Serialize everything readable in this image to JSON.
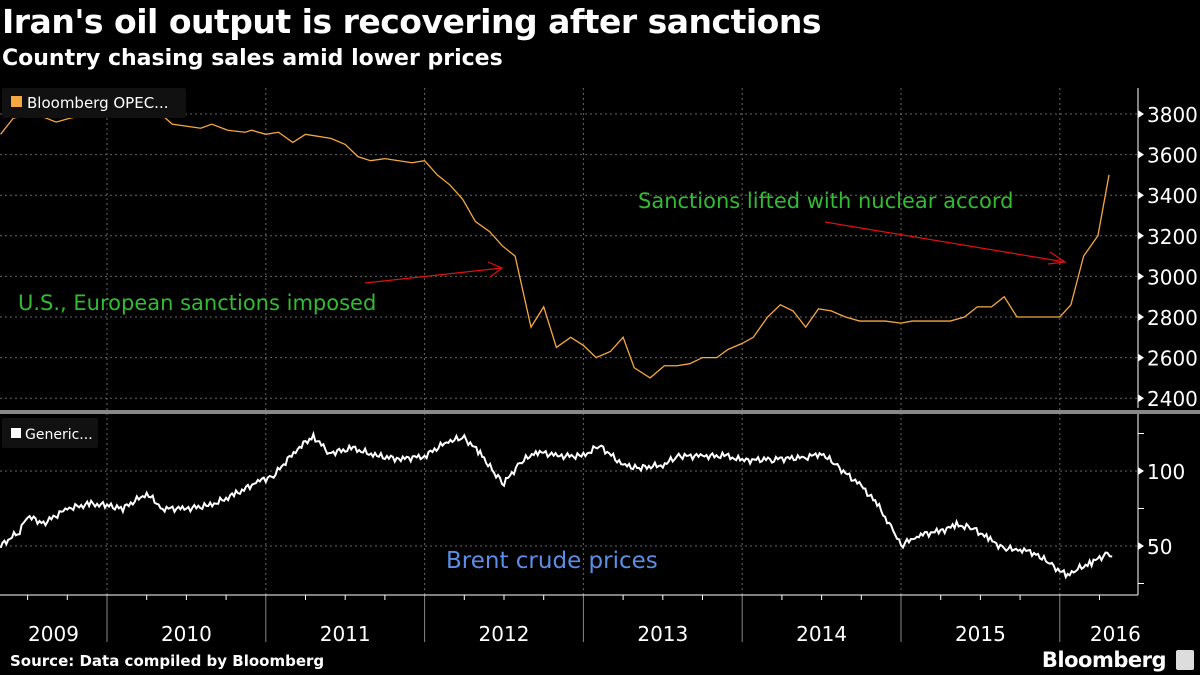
{
  "header": {
    "title": "Iran's oil output is recovering after sanctions",
    "subtitle": "Country chasing sales amid lower prices"
  },
  "footer": {
    "source": "Source: Data compiled by Bloomberg",
    "brand": "Bloomberg"
  },
  "colors": {
    "oil": "#f5a742",
    "brent": "#ffffff",
    "annotation": "#33bb33",
    "arrow": "#e01010",
    "brent_label": "#5b8ee6",
    "grid": "#666666"
  },
  "chart_data": [
    {
      "type": "line",
      "legend": "Bloomberg OPEC...",
      "ylim": [
        2300,
        3900
      ],
      "yticks": [
        2400,
        2600,
        2800,
        3000,
        3200,
        3400,
        3600,
        3800
      ],
      "annotations": [
        "Sanctions lifted with nuclear accord",
        "U.S., European sanctions imposed"
      ],
      "x": [
        2009.33,
        2009.41,
        2009.55,
        2009.68,
        2009.77,
        2009.9,
        2010.08,
        2010.18,
        2010.27,
        2010.34,
        2010.41,
        2010.59,
        2010.66,
        2010.76,
        2010.87,
        2010.91,
        2011.0,
        2011.08,
        2011.17,
        2011.25,
        2011.41,
        2011.5,
        2011.58,
        2011.66,
        2011.75,
        2011.92,
        2012.0,
        2012.08,
        2012.16,
        2012.24,
        2012.32,
        2012.41,
        2012.49,
        2012.57,
        2012.67,
        2012.75,
        2012.83,
        2012.92,
        2013.0,
        2013.08,
        2013.17,
        2013.25,
        2013.32,
        2013.42,
        2013.51,
        2013.59,
        2013.67,
        2013.75,
        2013.84,
        2013.91,
        2014.0,
        2014.07,
        2014.16,
        2014.24,
        2014.32,
        2014.4,
        2014.48,
        2014.56,
        2014.65,
        2014.74,
        2014.9,
        2015.0,
        2015.07,
        2015.31,
        2015.4,
        2015.48,
        2015.57,
        2015.65,
        2015.73,
        2016.0,
        2016.07,
        2016.15,
        2016.24,
        2016.31
      ],
      "values": [
        3700,
        3780,
        3800,
        3760,
        3780,
        3800,
        3810,
        3800,
        3830,
        3800,
        3750,
        3730,
        3750,
        3720,
        3710,
        3720,
        3700,
        3710,
        3660,
        3700,
        3680,
        3650,
        3590,
        3570,
        3580,
        3560,
        3570,
        3500,
        3450,
        3380,
        3270,
        3220,
        3150,
        3100,
        2750,
        2850,
        2650,
        2700,
        2660,
        2600,
        2630,
        2700,
        2550,
        2500,
        2560,
        2560,
        2570,
        2600,
        2600,
        2640,
        2670,
        2700,
        2800,
        2860,
        2830,
        2750,
        2840,
        2830,
        2800,
        2780,
        2780,
        2770,
        2780,
        2780,
        2800,
        2850,
        2850,
        2900,
        2800,
        2800,
        2860,
        3100,
        3200,
        3500
      ]
    },
    {
      "type": "line",
      "legend": "Generic...",
      "label": "Brent crude prices",
      "ylim": [
        17,
        140
      ],
      "yticks": [
        50,
        100
      ],
      "x": [
        2009.33,
        2009.45,
        2009.5,
        2009.6,
        2009.75,
        2009.9,
        2010.0,
        2010.1,
        2010.25,
        2010.35,
        2010.5,
        2010.65,
        2010.8,
        2010.95,
        2011.05,
        2011.2,
        2011.3,
        2011.4,
        2011.55,
        2011.7,
        2011.85,
        2012.0,
        2012.15,
        2012.25,
        2012.35,
        2012.45,
        2012.5,
        2012.6,
        2012.7,
        2012.85,
        2013.0,
        2013.1,
        2013.25,
        2013.35,
        2013.5,
        2013.6,
        2013.75,
        2013.9,
        2014.0,
        2014.2,
        2014.4,
        2014.5,
        2014.6,
        2014.75,
        2014.85,
        2014.95,
        2015.0,
        2015.1,
        2015.25,
        2015.35,
        2015.45,
        2015.55,
        2015.65,
        2015.75,
        2015.85,
        2015.95,
        2016.05,
        2016.1,
        2016.2,
        2016.3,
        2016.33
      ],
      "values": [
        50,
        60,
        70,
        65,
        75,
        78,
        77,
        75,
        85,
        75,
        75,
        77,
        84,
        93,
        97,
        115,
        123,
        112,
        115,
        110,
        108,
        110,
        120,
        122,
        112,
        97,
        92,
        105,
        113,
        110,
        110,
        117,
        104,
        102,
        104,
        110,
        110,
        110,
        107,
        108,
        109,
        112,
        103,
        90,
        78,
        60,
        50,
        57,
        60,
        64,
        62,
        55,
        48,
        48,
        45,
        37,
        30,
        34,
        39,
        45,
        43
      ]
    }
  ],
  "x_axis": {
    "labels": [
      "2009",
      "2010",
      "2011",
      "2012",
      "2013",
      "2014",
      "2015",
      "2016"
    ]
  }
}
